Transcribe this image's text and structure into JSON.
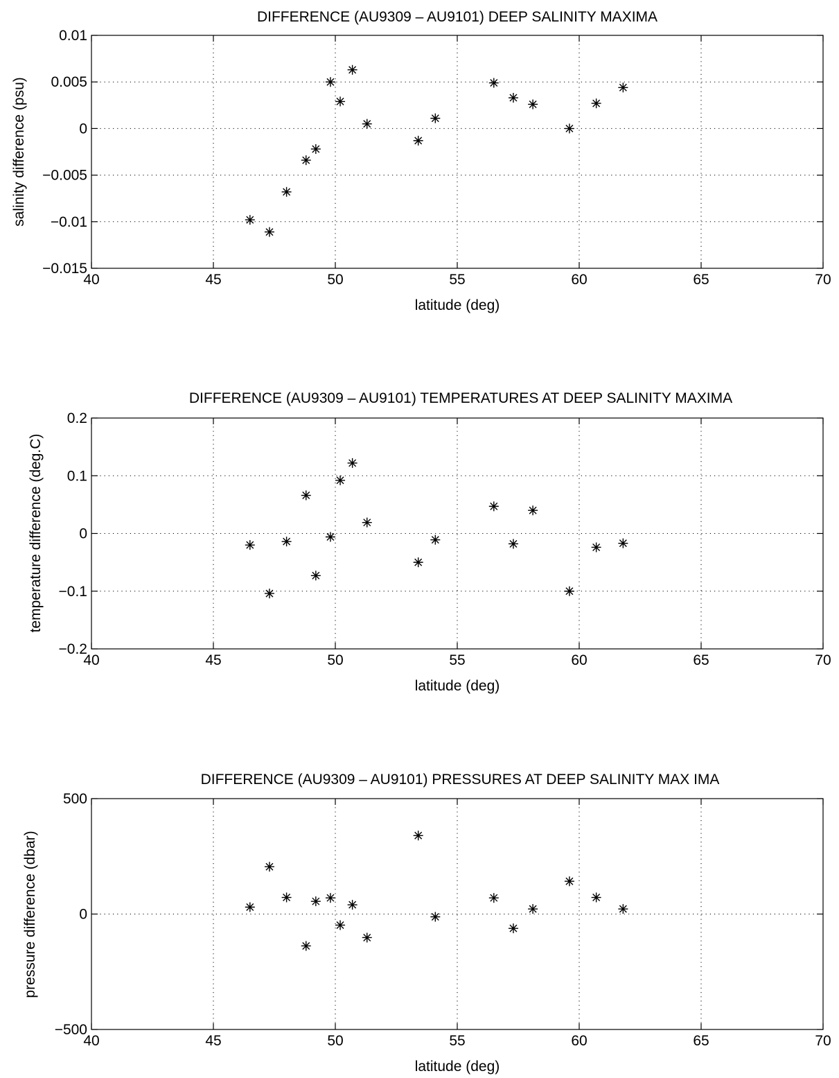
{
  "chart_data": [
    {
      "type": "scatter",
      "title": "DIFFERENCE (AU9309 – AU9101) DEEP SALINITY MAXIMA",
      "xlabel": "latitude (deg)",
      "ylabel": "salinity difference (psu)",
      "xlim": [
        40,
        70
      ],
      "ylim": [
        -0.015,
        0.01
      ],
      "xticks": [
        40,
        45,
        50,
        55,
        60,
        65,
        70
      ],
      "xtick_labels": [
        "40",
        "45",
        "50",
        "55",
        "60",
        "65",
        "70"
      ],
      "yticks": [
        -0.015,
        -0.01,
        -0.005,
        0,
        0.005,
        0.01
      ],
      "ytick_labels": [
        "−0.015",
        "−0.01",
        "−0.005",
        "0",
        "0.005",
        "0.01"
      ],
      "grid": true,
      "marker": "asterisk",
      "x": [
        46.5,
        47.3,
        48.0,
        48.8,
        49.2,
        49.8,
        50.2,
        50.7,
        51.3,
        53.4,
        54.1,
        56.5,
        57.3,
        58.1,
        59.6,
        60.7,
        61.8
      ],
      "y": [
        -0.0098,
        -0.0111,
        -0.0068,
        -0.0034,
        -0.0022,
        0.005,
        0.0029,
        0.0063,
        0.0005,
        -0.0013,
        0.0011,
        0.0049,
        0.0033,
        0.0026,
        0.0,
        0.0027,
        0.0044
      ]
    },
    {
      "type": "scatter",
      "title": "DIFFERENCE (AU9309 – AU9101) TEMPERATURES AT DEEP SALINITY  MAXIMA",
      "xlabel": "latitude (deg)",
      "ylabel": "temperature difference (deg.C)",
      "xlim": [
        40,
        70
      ],
      "ylim": [
        -0.2,
        0.2
      ],
      "xticks": [
        40,
        45,
        50,
        55,
        60,
        65,
        70
      ],
      "xtick_labels": [
        "40",
        "45",
        "50",
        "55",
        "60",
        "65",
        "70"
      ],
      "yticks": [
        -0.2,
        -0.1,
        0,
        0.1,
        0.2
      ],
      "ytick_labels": [
        "−0.2",
        "−0.1",
        "0",
        "0.1",
        "0.2"
      ],
      "grid": true,
      "marker": "asterisk",
      "x": [
        46.5,
        47.3,
        48.0,
        48.8,
        49.2,
        49.8,
        50.2,
        50.7,
        51.3,
        53.4,
        54.1,
        56.5,
        57.3,
        58.1,
        59.6,
        60.7,
        61.8
      ],
      "y": [
        -0.02,
        -0.104,
        -0.014,
        0.066,
        -0.073,
        -0.006,
        0.092,
        0.122,
        0.019,
        -0.05,
        -0.011,
        0.047,
        -0.018,
        0.04,
        -0.1,
        -0.024,
        -0.017
      ]
    },
    {
      "type": "scatter",
      "title": "DIFFERENCE (AU9309 – AU9101) PRESSURES AT DEEP SALINITY MAX IMA",
      "xlabel": "latitude (deg)",
      "ylabel": "pressure difference (dbar)",
      "xlim": [
        40,
        70
      ],
      "ylim": [
        -500,
        500
      ],
      "xticks": [
        40,
        45,
        50,
        55,
        60,
        65,
        70
      ],
      "xtick_labels": [
        "40",
        "45",
        "50",
        "55",
        "60",
        "65",
        "70"
      ],
      "yticks": [
        -500,
        0,
        500
      ],
      "ytick_labels": [
        "−500",
        "0",
        "500"
      ],
      "grid": true,
      "marker": "asterisk",
      "x": [
        46.5,
        47.3,
        48.0,
        48.8,
        49.2,
        49.8,
        50.2,
        50.7,
        51.3,
        53.4,
        54.1,
        56.5,
        57.3,
        58.1,
        59.6,
        60.7,
        61.8
      ],
      "y": [
        30,
        205,
        72,
        -138,
        55,
        70,
        -48,
        40,
        -102,
        340,
        -12,
        70,
        -62,
        22,
        142,
        72,
        22
      ]
    }
  ]
}
